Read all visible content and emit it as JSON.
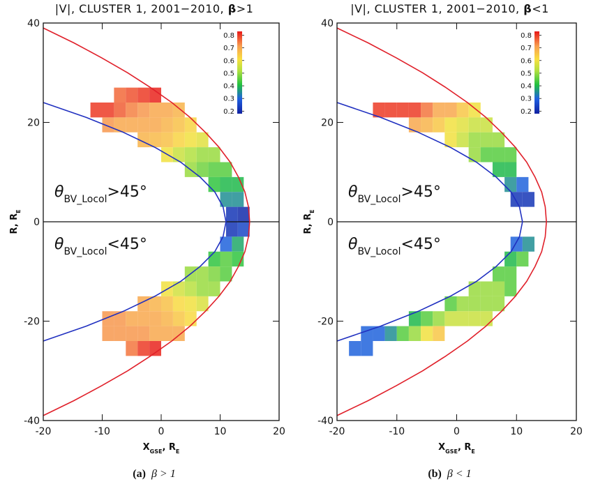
{
  "chart_data": [
    {
      "type": "heatmap",
      "title": [
        {
          "text": "|V|, CLUSTER 1, 2001−2010, "
        },
        {
          "text": "β",
          "bold": true
        },
        {
          "text": ">1"
        }
      ],
      "xlabel": [
        {
          "text": "X"
        },
        {
          "text": "GSE",
          "sub": true
        },
        {
          "text": ", R"
        },
        {
          "text": "E",
          "sub": true
        }
      ],
      "ylabel": [
        {
          "text": "R, R"
        },
        {
          "text": "E",
          "sub": true
        }
      ],
      "caption": [
        {
          "text": "(a)",
          "bold": true
        },
        {
          "text": "β > 1",
          "italic": true
        }
      ],
      "annotations": [
        [
          {
            "text": "θ",
            "italic": true
          },
          {
            "text": "BV_Locol",
            "sub": true
          },
          {
            "text": ">45°"
          }
        ],
        [
          {
            "text": "θ",
            "italic": true
          },
          {
            "text": "BV_Locol",
            "sub": true
          },
          {
            "text": "<45°"
          }
        ]
      ],
      "xlim": [
        -20,
        20
      ],
      "ylim": [
        -40,
        40
      ],
      "xticks": [
        -20,
        -10,
        0,
        10,
        20
      ],
      "yticks": [
        -40,
        -20,
        0,
        20,
        40
      ],
      "hline": 0,
      "clim": [
        0.18,
        0.83
      ],
      "cticks": [
        0.2,
        0.3,
        0.4,
        0.5,
        0.6,
        0.7,
        0.8
      ],
      "lines": [
        {
          "color": "#e0202a",
          "y": [
            -39,
            -36,
            -33,
            -30,
            -27,
            -24,
            -21,
            -18,
            -15,
            -12,
            -9,
            -6,
            -3,
            0,
            3,
            6,
            9,
            12,
            15,
            18,
            21,
            24,
            27,
            30,
            33,
            36,
            39
          ],
          "x": [
            -20,
            -14.8,
            -10.1,
            -5.7,
            -1.8,
            1.8,
            4.9,
            7.5,
            9.8,
            11.7,
            13.1,
            14.2,
            14.8,
            15,
            14.8,
            14.2,
            13.1,
            11.7,
            9.8,
            7.5,
            4.9,
            1.8,
            -1.8,
            -5.7,
            -10.1,
            -14.8,
            -20
          ]
        },
        {
          "color": "#2030c0",
          "y": [
            -24,
            -21,
            -18,
            -15,
            -12,
            -9,
            -6,
            -3,
            0,
            3,
            6,
            9,
            12,
            15,
            18,
            21,
            24
          ],
          "x": [
            -20,
            -12.7,
            -6.4,
            -1.1,
            3.3,
            6.6,
            9.1,
            10.5,
            11,
            10.5,
            9.1,
            6.6,
            3.3,
            -1.1,
            -6.4,
            -12.7,
            -20
          ]
        }
      ],
      "rows": [
        {
          "y": 25.5,
          "x": [
            -7,
            -5,
            -3,
            -1
          ],
          "values": [
            0.76,
            0.78,
            0.8,
            0.82
          ]
        },
        {
          "y": 22.5,
          "x": [
            -11,
            -9,
            -7,
            -5,
            -3,
            -1,
            1,
            3
          ],
          "values": [
            0.8,
            0.8,
            0.77,
            0.74,
            0.72,
            0.7,
            0.7,
            0.68
          ]
        },
        {
          "y": 19.5,
          "x": [
            -9,
            -7,
            -5,
            -3,
            -1,
            1,
            3,
            5
          ],
          "values": [
            0.72,
            0.7,
            0.7,
            0.7,
            0.7,
            0.68,
            0.66,
            0.63
          ]
        },
        {
          "y": 16.5,
          "x": [
            -3,
            -1,
            1,
            3,
            5,
            7
          ],
          "values": [
            0.68,
            0.67,
            0.66,
            0.63,
            0.6,
            0.58
          ]
        },
        {
          "y": 13.5,
          "x": [
            1,
            3,
            5,
            7,
            9
          ],
          "values": [
            0.6,
            0.55,
            0.52,
            0.5,
            0.5
          ]
        },
        {
          "y": 10.5,
          "x": [
            5,
            7,
            9,
            11
          ],
          "values": [
            0.5,
            0.47,
            0.45,
            0.45
          ]
        },
        {
          "y": 7.5,
          "x": [
            9,
            11,
            13
          ],
          "values": [
            0.42,
            0.4,
            0.4
          ]
        },
        {
          "y": 4.5,
          "x": [
            11,
            13
          ],
          "values": [
            0.35,
            0.35
          ]
        },
        {
          "y": 1.5,
          "x": [
            12,
            14
          ],
          "values": [
            0.22,
            0.2
          ]
        },
        {
          "y": -1.5,
          "x": [
            12,
            14
          ],
          "values": [
            0.22,
            0.25
          ]
        },
        {
          "y": -4.5,
          "x": [
            11,
            13
          ],
          "values": [
            0.3,
            0.38
          ]
        },
        {
          "y": -7.5,
          "x": [
            9,
            11,
            13
          ],
          "values": [
            0.42,
            0.45,
            0.42
          ]
        },
        {
          "y": -10.5,
          "x": [
            5,
            7,
            9,
            11
          ],
          "values": [
            0.5,
            0.5,
            0.48,
            0.45
          ]
        },
        {
          "y": -13.5,
          "x": [
            1,
            3,
            5,
            7,
            9
          ],
          "values": [
            0.6,
            0.56,
            0.53,
            0.5,
            0.5
          ]
        },
        {
          "y": -16.5,
          "x": [
            -3,
            -1,
            1,
            3,
            5,
            7
          ],
          "values": [
            0.7,
            0.68,
            0.66,
            0.62,
            0.6,
            0.57
          ]
        },
        {
          "y": -19.5,
          "x": [
            -9,
            -7,
            -5,
            -3,
            -1,
            1,
            3,
            5
          ],
          "values": [
            0.72,
            0.72,
            0.7,
            0.7,
            0.7,
            0.68,
            0.65,
            0.62
          ]
        },
        {
          "y": -22.5,
          "x": [
            -9,
            -7,
            -5,
            -3,
            -1,
            1,
            3
          ],
          "values": [
            0.72,
            0.72,
            0.72,
            0.72,
            0.7,
            0.7,
            0.7
          ]
        },
        {
          "y": -25.5,
          "x": [
            -5,
            -3,
            -1
          ],
          "values": [
            0.75,
            0.8,
            0.82
          ]
        }
      ]
    },
    {
      "type": "heatmap",
      "title": [
        {
          "text": "|V|, CLUSTER 1, 2001−2010, "
        },
        {
          "text": "β",
          "bold": true
        },
        {
          "text": "<1"
        }
      ],
      "xlabel": [
        {
          "text": "X"
        },
        {
          "text": "GSE",
          "sub": true
        },
        {
          "text": ", R"
        },
        {
          "text": "E",
          "sub": true
        }
      ],
      "ylabel": [
        {
          "text": "R, R"
        },
        {
          "text": "E",
          "sub": true
        }
      ],
      "caption": [
        {
          "text": "(b)",
          "bold": true
        },
        {
          "text": "β < 1",
          "italic": true
        }
      ],
      "annotations": [
        [
          {
            "text": "θ",
            "italic": true
          },
          {
            "text": "BV_Locol",
            "sub": true
          },
          {
            "text": ">45°"
          }
        ],
        [
          {
            "text": "θ",
            "italic": true
          },
          {
            "text": "BV_Locol",
            "sub": true
          },
          {
            "text": "<45°"
          }
        ]
      ],
      "xlim": [
        -20,
        20
      ],
      "ylim": [
        -40,
        40
      ],
      "xticks": [
        -20,
        -10,
        0,
        10,
        20
      ],
      "yticks": [
        -40,
        -20,
        0,
        20,
        40
      ],
      "hline": 0,
      "clim": [
        0.18,
        0.83
      ],
      "cticks": [
        0.2,
        0.3,
        0.4,
        0.5,
        0.6,
        0.7,
        0.8
      ],
      "lines": [
        {
          "color": "#e0202a",
          "y": [
            -39,
            -36,
            -33,
            -30,
            -27,
            -24,
            -21,
            -18,
            -15,
            -12,
            -9,
            -6,
            -3,
            0,
            3,
            6,
            9,
            12,
            15,
            18,
            21,
            24,
            27,
            30,
            33,
            36,
            39
          ],
          "x": [
            -20,
            -14.8,
            -10.1,
            -5.7,
            -1.8,
            1.8,
            4.9,
            7.5,
            9.8,
            11.7,
            13.1,
            14.2,
            14.8,
            15,
            14.8,
            14.2,
            13.1,
            11.7,
            9.8,
            7.5,
            4.9,
            1.8,
            -1.8,
            -5.7,
            -10.1,
            -14.8,
            -20
          ]
        },
        {
          "color": "#2030c0",
          "y": [
            -24,
            -21,
            -18,
            -15,
            -12,
            -9,
            -6,
            -3,
            0,
            3,
            6,
            9,
            12,
            15,
            18,
            21,
            24
          ],
          "x": [
            -20,
            -12.7,
            -6.4,
            -1.1,
            3.3,
            6.6,
            9.1,
            10.5,
            11,
            10.5,
            9.1,
            6.6,
            3.3,
            -1.1,
            -6.4,
            -12.7,
            -20
          ]
        }
      ],
      "rows": [
        {
          "y": 22.5,
          "x": [
            -13,
            -11,
            -9,
            -7,
            -5,
            -3,
            -1,
            1,
            3
          ],
          "values": [
            0.8,
            0.8,
            0.8,
            0.8,
            0.75,
            0.7,
            0.7,
            0.65,
            0.6
          ]
        },
        {
          "y": 19.5,
          "x": [
            -7,
            -5,
            -3,
            -1,
            1,
            3,
            5
          ],
          "values": [
            0.7,
            0.68,
            0.65,
            0.6,
            0.58,
            0.55,
            0.55
          ]
        },
        {
          "y": 16.5,
          "x": [
            -1,
            1,
            3,
            5,
            7
          ],
          "values": [
            0.6,
            0.55,
            0.5,
            0.5,
            0.5
          ]
        },
        {
          "y": 13.5,
          "x": [
            3,
            5,
            7,
            9
          ],
          "values": [
            0.5,
            0.45,
            0.45,
            0.45
          ]
        },
        {
          "y": 10.5,
          "x": [
            7,
            9
          ],
          "values": [
            0.4,
            0.4
          ]
        },
        {
          "y": 7.5,
          "x": [
            9,
            11
          ],
          "values": [
            0.35,
            0.3
          ]
        },
        {
          "y": 4.5,
          "x": [
            10,
            12
          ],
          "values": [
            0.22,
            0.22
          ]
        },
        {
          "y": -4.5,
          "x": [
            10,
            12
          ],
          "values": [
            0.3,
            0.35
          ]
        },
        {
          "y": -7.5,
          "x": [
            9,
            11
          ],
          "values": [
            0.4,
            0.45
          ]
        },
        {
          "y": -10.5,
          "x": [
            7,
            9
          ],
          "values": [
            0.45,
            0.45
          ]
        },
        {
          "y": -13.5,
          "x": [
            3,
            5,
            7,
            9
          ],
          "values": [
            0.5,
            0.5,
            0.5,
            0.45
          ]
        },
        {
          "y": -16.5,
          "x": [
            -1,
            1,
            3,
            5,
            7
          ],
          "values": [
            0.45,
            0.5,
            0.5,
            0.5,
            0.5
          ]
        },
        {
          "y": -19.5,
          "x": [
            -7,
            -5,
            -3,
            -1,
            1,
            3,
            5
          ],
          "values": [
            0.4,
            0.45,
            0.5,
            0.55,
            0.55,
            0.55,
            0.55
          ]
        },
        {
          "y": -22.5,
          "x": [
            -15,
            -13,
            -11,
            -9,
            -7,
            -5,
            -3
          ],
          "values": [
            0.3,
            0.3,
            0.35,
            0.45,
            0.5,
            0.6,
            0.65
          ]
        },
        {
          "y": -25.5,
          "x": [
            -17,
            -15
          ],
          "values": [
            0.3,
            0.3
          ]
        }
      ]
    }
  ]
}
